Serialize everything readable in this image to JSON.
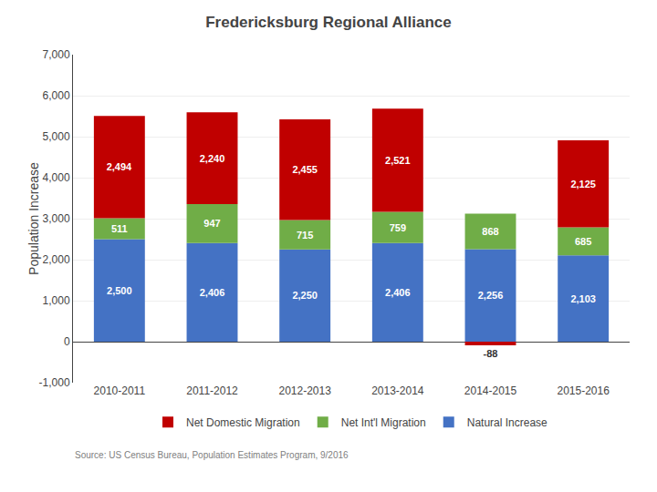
{
  "chart_data": {
    "type": "bar",
    "title": "Fredericksburg Regional Alliance",
    "categories": [
      "2010-2011",
      "2011-2012",
      "2012-2013",
      "2013-2014",
      "2014-2015",
      "2015-2016"
    ],
    "series": [
      {
        "name": "Natural Increase",
        "color": "#4472C4",
        "values": [
          2500,
          2406,
          2250,
          2406,
          2256,
          2103
        ],
        "value_labels": [
          "2,500",
          "2,406",
          "2,250",
          "2,406",
          "2,256",
          "2,103"
        ]
      },
      {
        "name": "Net Int'l Migration",
        "color": "#70AD47",
        "values": [
          511,
          947,
          715,
          759,
          868,
          685
        ]
      },
      {
        "name": "Net Domestic Migration",
        "color": "#C00000",
        "values": [
          2494,
          2240,
          2455,
          2521,
          -88,
          2125
        ],
        "value_labels": [
          "2,494",
          "2,240",
          "2,455",
          "2,521",
          "-88",
          "2,125"
        ]
      }
    ],
    "stacked": true,
    "data_labels": true,
    "ylabel": "Population Increase",
    "ylim": [
      -1000,
      7000
    ],
    "yticks": [
      {
        "value": -1000,
        "label": "-1,000"
      },
      0,
      {
        "value": 1000,
        "label": "1,000"
      },
      {
        "value": 2000,
        "label": "2,000"
      },
      {
        "value": 3000,
        "label": "3,000"
      },
      {
        "value": 4000,
        "label": "4,000"
      },
      {
        "value": 5000,
        "label": "5,000"
      },
      {
        "value": 6000,
        "label": "6,000"
      },
      {
        "value": 7000,
        "label": "7,000"
      }
    ],
    "grid": true,
    "legend": "bottom",
    "annotations": [
      "Source: US Census Bureau, Population Estimates Program, 9/2016"
    ]
  }
}
